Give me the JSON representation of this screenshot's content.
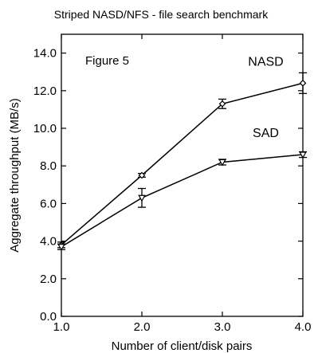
{
  "chart_data": {
    "type": "line",
    "title": "Striped NASD/NFS - file search benchmark",
    "annotation": "Figure 5",
    "xlabel": "Number of client/disk pairs",
    "ylabel": "Aggregate throughput (MB/s)",
    "xlim": [
      1.0,
      4.0
    ],
    "ylim": [
      0.0,
      15.0
    ],
    "xticks": [
      1.0,
      2.0,
      3.0,
      4.0
    ],
    "xtick_labels": [
      "1.0",
      "2.0",
      "3.0",
      "4.0"
    ],
    "yticks": [
      0.0,
      2.0,
      4.0,
      6.0,
      8.0,
      10.0,
      12.0,
      14.0
    ],
    "ytick_labels": [
      "0.0",
      "2.0",
      "4.0",
      "6.0",
      "8.0",
      "10.0",
      "12.0",
      "14.0"
    ],
    "grid": false,
    "legend": "none",
    "series": [
      {
        "name": "NASD",
        "marker": "diamond",
        "x": [
          1.0,
          2.0,
          3.0,
          4.0
        ],
        "y": [
          3.8,
          7.5,
          11.3,
          12.4
        ],
        "err": [
          0.15,
          0.1,
          0.25,
          0.55
        ]
      },
      {
        "name": "SAD",
        "marker": "triangle-down",
        "x": [
          1.0,
          2.0,
          3.0,
          4.0
        ],
        "y": [
          3.7,
          6.3,
          8.2,
          8.6
        ],
        "err": [
          0.15,
          0.5,
          0.15,
          0.15
        ]
      }
    ],
    "colors": {
      "line": "#000000",
      "background": "#ffffff"
    }
  }
}
